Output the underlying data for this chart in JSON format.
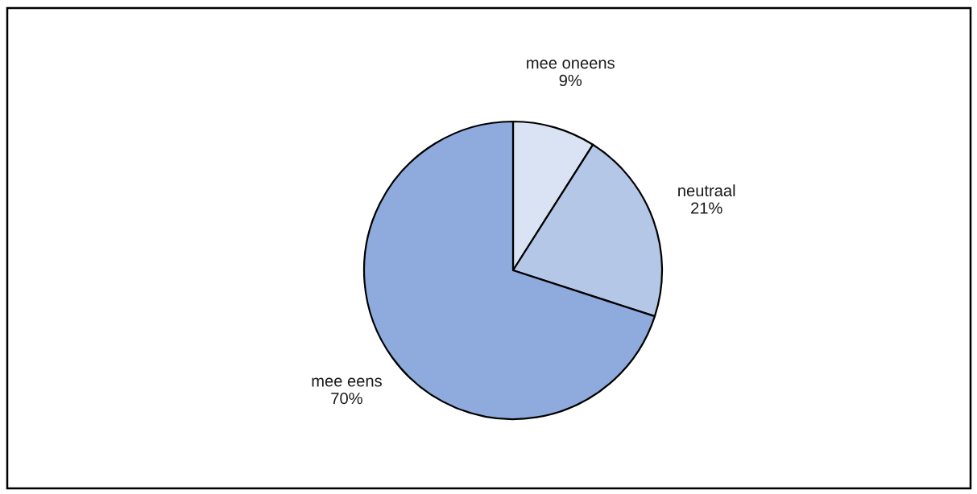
{
  "chart_data": {
    "type": "pie",
    "categories": [
      "mee oneens",
      "neutraal",
      "mee eens"
    ],
    "values": [
      9,
      21,
      70
    ],
    "value_labels": [
      "9%",
      "21%",
      "70%"
    ],
    "colors": [
      "#dae3f3",
      "#b4c7e7",
      "#8faadc"
    ],
    "legend": false
  }
}
